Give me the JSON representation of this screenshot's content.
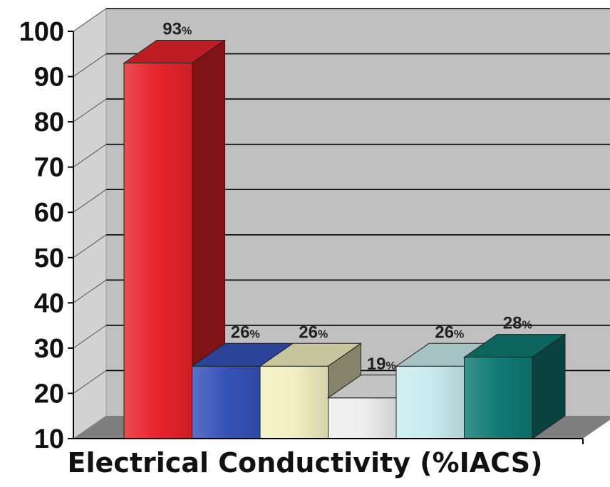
{
  "chart_data": {
    "type": "bar",
    "style": "3d",
    "title": "",
    "xlabel": "Electrical Conductivity (%IACS)",
    "ylabel": "",
    "ylim": [
      10,
      100
    ],
    "yticks": [
      10,
      20,
      30,
      40,
      50,
      60,
      70,
      80,
      90,
      100
    ],
    "grid": true,
    "legend": "none",
    "value_suffix": "%",
    "series": [
      {
        "values": [
          93,
          26,
          26,
          19,
          26,
          28
        ],
        "colors": [
          "#e8232b",
          "#3553b8",
          "#f2f0c0",
          "#eeeeee",
          "#c8ecee",
          "#107a74"
        ],
        "data_labels": [
          "93",
          "26",
          "26",
          "19",
          "26",
          "28"
        ]
      }
    ]
  },
  "colors": {
    "plot_wall": "#c0c0c0",
    "plot_floor": "#7f7f7f",
    "gridline": "#000000"
  }
}
